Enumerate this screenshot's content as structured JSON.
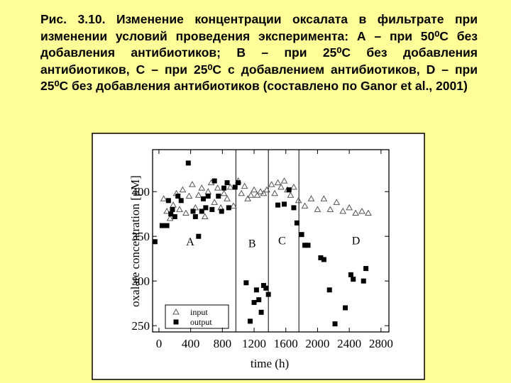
{
  "caption": "Рис. 3.10. Изменение концентрации оксалата в  фильтрате при  изменении условий проведения эксперимента: А – при 50⁰С без добавления антибиотиков; В – при 25⁰С без добавления антибиотиков, С –  при 25⁰С с добавлением антибиотиков, D – при 25⁰С без добавления антибиотиков (составлено по Ganor et al., 2001)",
  "chart_data": {
    "type": "scatter",
    "x_label": "time (h)",
    "y_label": "oxalate concentration [μM]",
    "xlim": [
      -80,
      2900
    ],
    "ylim": [
      243,
      447
    ],
    "xticks": [
      0,
      400,
      800,
      1200,
      1600,
      2000,
      2400,
      2800
    ],
    "yticks": [
      250,
      300,
      350,
      400
    ],
    "dividers": [
      970,
      1380,
      1765
    ],
    "annotations": [
      {
        "text": "A",
        "x": 395,
        "y": 340
      },
      {
        "text": "B",
        "x": 1175,
        "y": 338
      },
      {
        "text": "C",
        "x": 1552,
        "y": 341
      },
      {
        "text": "D",
        "x": 2484,
        "y": 341
      }
    ],
    "series": [
      {
        "name": "input",
        "marker": "triangle",
        "color": "#555555",
        "x": [
          60,
          100,
          140,
          180,
          220,
          260,
          300,
          340,
          380,
          420,
          460,
          500,
          540,
          580,
          620,
          660,
          700,
          740,
          780,
          820,
          860,
          900,
          940,
          1000,
          1040,
          1080,
          1120,
          1160,
          1200,
          1240,
          1280,
          1320,
          1360,
          1420,
          1460,
          1500,
          1540,
          1580,
          1620,
          1660,
          1700,
          1760,
          1840,
          1920,
          2000,
          2080,
          2160,
          2240,
          2320,
          2400,
          2480,
          2560,
          2640
        ],
        "y": [
          392,
          378,
          370,
          385,
          398,
          380,
          402,
          376,
          395,
          408,
          382,
          396,
          404,
          372,
          400,
          410,
          388,
          404,
          382,
          398,
          392,
          405,
          384,
          412,
          398,
          406,
          392,
          396,
          402,
          396,
          400,
          398,
          402,
          408,
          398,
          410,
          405,
          412,
          402,
          396,
          405,
          390,
          384,
          392,
          380,
          392,
          380,
          388,
          378,
          382,
          376,
          378,
          376
        ]
      },
      {
        "name": "output",
        "marker": "square",
        "color": "#000000",
        "x": [
          -50,
          40,
          100,
          120,
          150,
          170,
          200,
          240,
          280,
          370,
          430,
          460,
          500,
          540,
          560,
          590,
          620,
          670,
          700,
          750,
          790,
          820,
          860,
          880,
          960,
          1000,
          1100,
          1150,
          1200,
          1230,
          1260,
          1290,
          1320,
          1350,
          1380,
          1500,
          1580,
          1640,
          1700,
          1740,
          1800,
          1840,
          1880,
          2040,
          2080,
          2150,
          2220,
          2350,
          2420,
          2450,
          2580,
          2610
        ],
        "y": [
          344,
          362,
          362,
          390,
          375,
          380,
          372,
          395,
          390,
          432,
          378,
          372,
          350,
          378,
          392,
          382,
          395,
          380,
          412,
          395,
          378,
          404,
          410,
          382,
          405,
          410,
          298,
          255,
          276,
          290,
          279,
          265,
          295,
          292,
          285,
          385,
          386,
          402,
          382,
          365,
          352,
          340,
          340,
          326,
          324,
          290,
          252,
          270,
          307,
          302,
          300,
          314
        ]
      }
    ]
  }
}
